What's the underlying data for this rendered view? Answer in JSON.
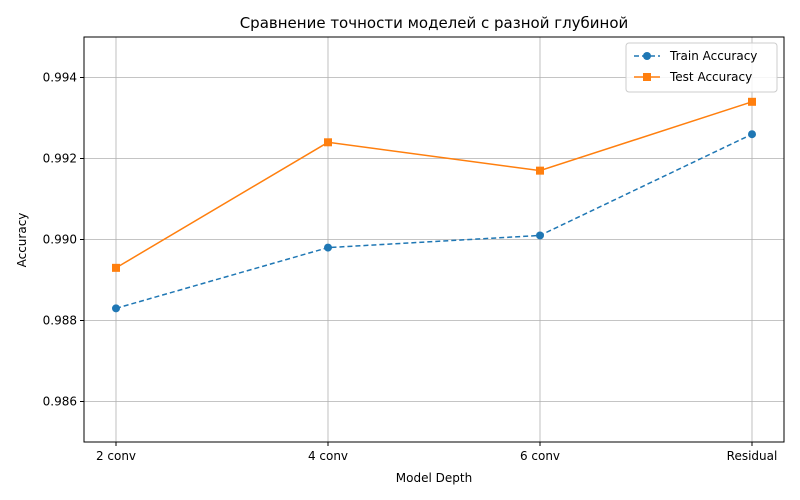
{
  "chart_data": {
    "type": "line",
    "title": "Сравнение точности моделей с разной глубиной",
    "xlabel": "Model Depth",
    "ylabel": "Accuracy",
    "categories": [
      "2 conv",
      "4 conv",
      "6 conv",
      "Residual"
    ],
    "ylim": [
      0.985,
      0.995
    ],
    "yticks": [
      "0.986",
      "0.988",
      "0.990",
      "0.992",
      "0.994"
    ],
    "grid": true,
    "legend_position": "top-right",
    "series": [
      {
        "name": "Train Accuracy",
        "values": [
          0.9883,
          0.9898,
          0.9901,
          0.9926
        ],
        "color": "#1f77b4",
        "line_style": "dashed",
        "marker": "circle"
      },
      {
        "name": "Test Accuracy",
        "values": [
          0.9893,
          0.9924,
          0.9917,
          0.9934
        ],
        "color": "#ff7f0e",
        "line_style": "solid",
        "marker": "square"
      }
    ]
  }
}
